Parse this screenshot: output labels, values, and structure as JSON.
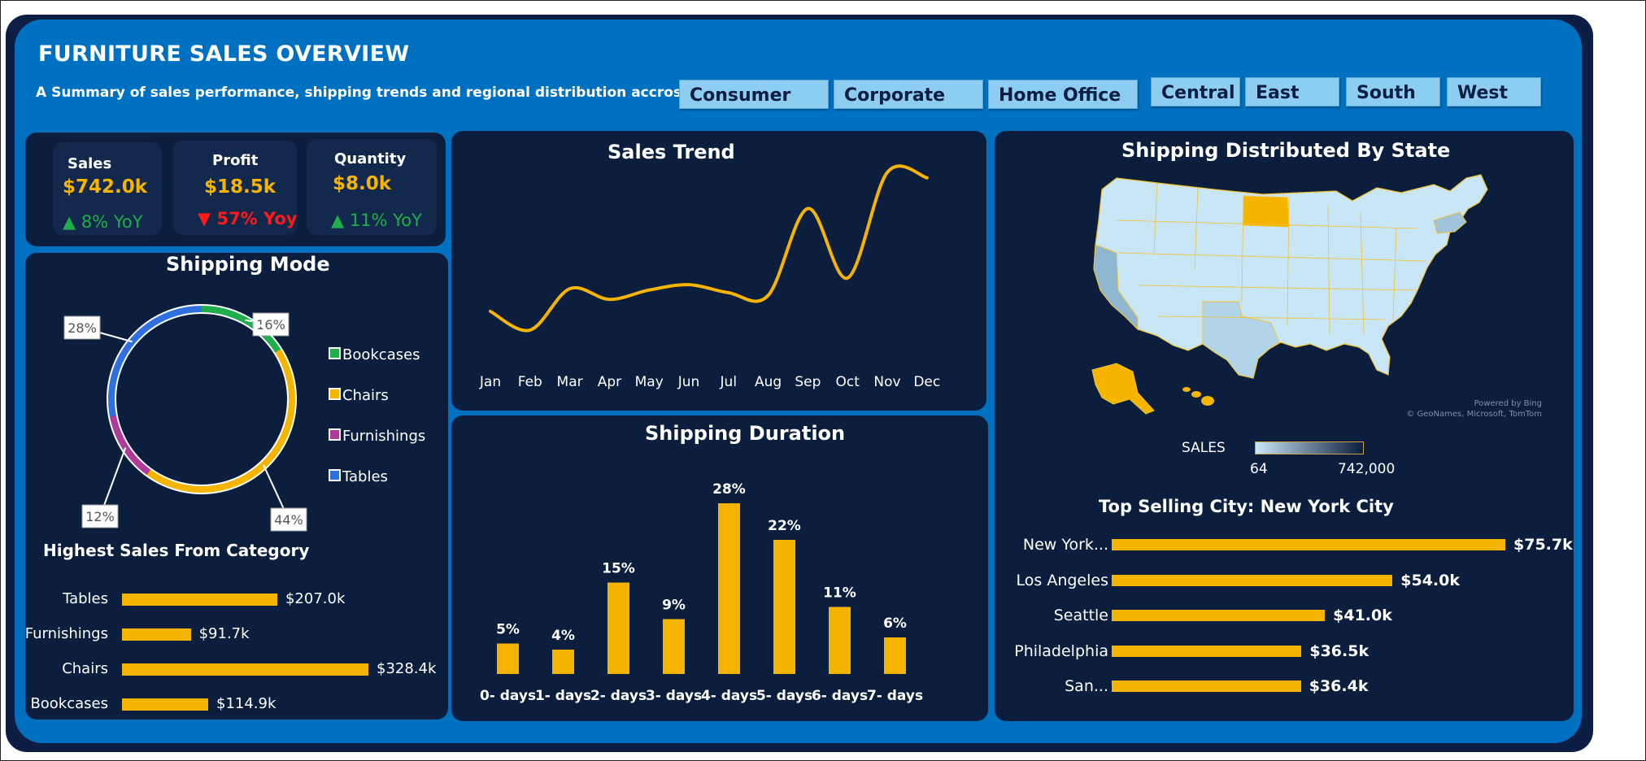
{
  "header": {
    "title": "FURNITURE SALES OVERVIEW",
    "subtitle": "A Summary of sales performance, shipping trends and regional distribution accross the U.S"
  },
  "slicers": {
    "segments": [
      "Consumer",
      "Corporate",
      "Home Office"
    ],
    "regions": [
      "Central",
      "East",
      "South",
      "West"
    ]
  },
  "kpis": [
    {
      "label": "Sales",
      "value": "$742.0k",
      "yoy": "▲ 8% YoY",
      "trend": "up"
    },
    {
      "label": "Profit",
      "value": "$18.5k",
      "yoy": "▼ 57% Yoy",
      "trend": "down"
    },
    {
      "label": "Quantity",
      "value": "$8.0k",
      "yoy": "▲ 11% YoY",
      "trend": "up"
    }
  ],
  "colors": {
    "accent": "#f5b400",
    "up": "#1fae4b",
    "down": "#ff1a1a",
    "panel": "#0c1e3e",
    "background": "#0070c0"
  },
  "shipping_mode": {
    "title": "Shipping Mode",
    "legend": [
      "Bookcases",
      "Chairs",
      "Furnishings",
      "Tables"
    ],
    "labels": [
      "16%",
      "44%",
      "12%",
      "28%"
    ]
  },
  "category_sales": {
    "title": "Highest Sales From Category"
  },
  "sales_trend": {
    "title": "Sales Trend"
  },
  "shipping_duration": {
    "title": "Shipping Duration"
  },
  "map": {
    "title": "Shipping Distributed By State",
    "legend_label": "SALES",
    "legend_min": "64",
    "legend_max": "742,000",
    "credit_1": "Powered by Bing",
    "credit_2": "© GeoNames, Microsoft, TomTom"
  },
  "top_city": {
    "title": "Top Selling City:  New York City"
  },
  "chart_data": [
    {
      "type": "pie",
      "title": "Shipping Mode",
      "categories": [
        "Bookcases",
        "Chairs",
        "Furnishings",
        "Tables"
      ],
      "values": [
        16,
        44,
        12,
        28
      ],
      "colors": [
        "#1fae4b",
        "#f5b400",
        "#b03a9a",
        "#2f6fe0"
      ],
      "legend": "right"
    },
    {
      "type": "bar",
      "orientation": "horizontal",
      "title": "Highest Sales From Category",
      "categories": [
        "Tables",
        "Furnishings",
        "Chairs",
        "Bookcases"
      ],
      "values": [
        207.0,
        91.7,
        328.4,
        114.9
      ],
      "data_labels": [
        "$207.0k",
        "$91.7k",
        "$328.4k",
        "$114.9k"
      ]
    },
    {
      "type": "line",
      "title": "Sales Trend",
      "categories": [
        "Jan",
        "Feb",
        "Mar",
        "Apr",
        "May",
        "Jun",
        "Jul",
        "Aug",
        "Sep",
        "Oct",
        "Nov",
        "Dec"
      ],
      "values": [
        28,
        14,
        45,
        37,
        44,
        48,
        42,
        40,
        105,
        53,
        132,
        128
      ]
    },
    {
      "type": "bar",
      "title": "Shipping Duration",
      "categories": [
        "0- days",
        "1- days",
        "2- days",
        "3- days",
        "4- days",
        "5- days",
        "6- days",
        "7- days"
      ],
      "values": [
        5,
        4,
        15,
        9,
        28,
        22,
        11,
        6
      ],
      "data_labels": [
        "5%",
        "4%",
        "15%",
        "9%",
        "28%",
        "22%",
        "11%",
        "6%"
      ]
    },
    {
      "type": "bar",
      "orientation": "horizontal",
      "title": "Top Selling City:  New York City",
      "categories": [
        "New York...",
        "Los Angeles",
        "Seattle",
        "Philadelphia",
        "San..."
      ],
      "values": [
        75.7,
        54.0,
        41.0,
        36.5,
        36.4
      ],
      "data_labels": [
        "$75.7k",
        "$54.0k",
        "$41.0k",
        "$36.5k",
        "$36.4k"
      ]
    }
  ]
}
